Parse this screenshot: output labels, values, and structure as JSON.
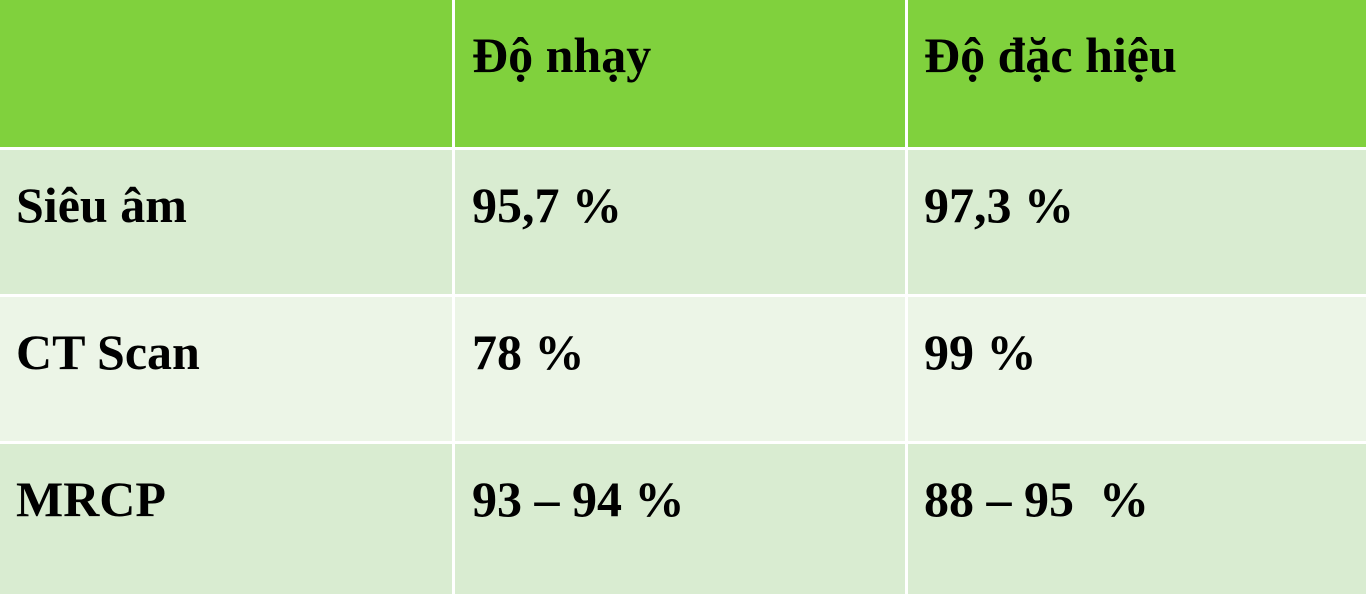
{
  "colors": {
    "header": "#80d13d",
    "row_odd": "#d9ecd1",
    "row_even": "#ecf5e7",
    "divider": "#ffffff",
    "text": "#000000"
  },
  "table": {
    "headers": [
      "",
      "Độ nhạy",
      "Độ đặc hiệu"
    ],
    "rows": [
      {
        "label": "Siêu âm",
        "sensitivity": "95,7 %",
        "specificity": "97,3 %"
      },
      {
        "label": "CT Scan",
        "sensitivity": "78 %",
        "specificity": "99 %"
      },
      {
        "label": "MRCP",
        "sensitivity": "93 – 94 %",
        "specificity": "88 – 95  %"
      }
    ]
  }
}
